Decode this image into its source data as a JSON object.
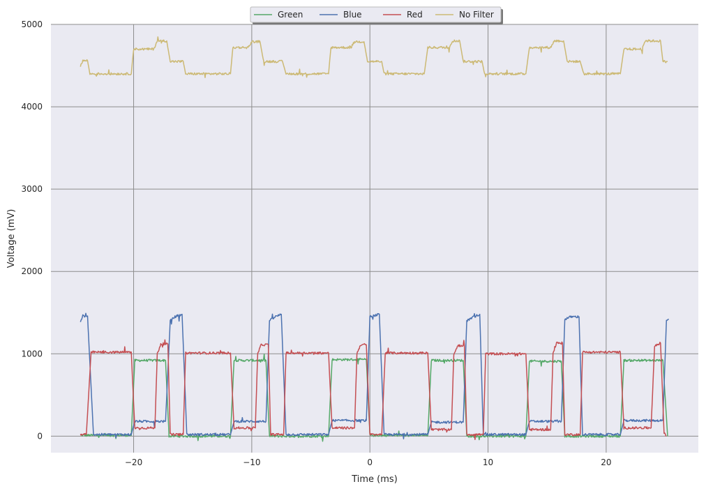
{
  "chart_data": {
    "type": "line",
    "title": "",
    "xlabel": "Time (ms)",
    "ylabel": "Voltage (mV)",
    "xlim": [
      -27,
      27.8
    ],
    "ylim": [
      -200,
      5000
    ],
    "xticks": [
      -20,
      -10,
      0,
      10,
      20
    ],
    "xtick_labels": [
      "−20",
      "−10",
      "0",
      "10",
      "20"
    ],
    "yticks": [
      0,
      1000,
      2000,
      3000,
      4000,
      5000
    ],
    "ytick_labels": [
      "0",
      "1000",
      "2000",
      "3000",
      "4000",
      "5000"
    ],
    "grid": true,
    "legend": {
      "placement": "top-center",
      "entries": [
        "Green",
        "Blue",
        "Red",
        "No Filter"
      ]
    },
    "series": [
      {
        "name": "Green",
        "color": "#55a868",
        "points": [
          [
            -24.5,
            10
          ],
          [
            -20.2,
            10
          ],
          [
            -19.9,
            920
          ],
          [
            -17.3,
            920
          ],
          [
            -17.0,
            0
          ],
          [
            -11.8,
            0
          ],
          [
            -11.5,
            920
          ],
          [
            -8.8,
            920
          ],
          [
            -8.5,
            0
          ],
          [
            -3.5,
            0
          ],
          [
            -3.2,
            930
          ],
          [
            -0.3,
            930
          ],
          [
            0.0,
            10
          ],
          [
            4.9,
            10
          ],
          [
            5.2,
            920
          ],
          [
            7.9,
            920
          ],
          [
            8.2,
            0
          ],
          [
            13.2,
            0
          ],
          [
            13.5,
            910
          ],
          [
            16.2,
            910
          ],
          [
            16.5,
            0
          ],
          [
            21.2,
            0
          ],
          [
            21.5,
            920
          ],
          [
            24.8,
            920
          ],
          [
            25.2,
            0
          ]
        ]
      },
      {
        "name": "Blue",
        "color": "#4c72b0",
        "points": [
          [
            -24.5,
            1400
          ],
          [
            -24.3,
            1460
          ],
          [
            -23.9,
            1460
          ],
          [
            -23.4,
            20
          ],
          [
            -20.2,
            20
          ],
          [
            -19.9,
            180
          ],
          [
            -17.3,
            180
          ],
          [
            -16.9,
            1400
          ],
          [
            -16.5,
            1450
          ],
          [
            -15.9,
            1480
          ],
          [
            -15.5,
            20
          ],
          [
            -11.8,
            20
          ],
          [
            -11.5,
            180
          ],
          [
            -8.8,
            180
          ],
          [
            -8.5,
            1400
          ],
          [
            -8.0,
            1450
          ],
          [
            -7.5,
            1480
          ],
          [
            -7.1,
            20
          ],
          [
            -3.5,
            20
          ],
          [
            -3.2,
            190
          ],
          [
            -0.3,
            190
          ],
          [
            0.0,
            1450
          ],
          [
            0.8,
            1480
          ],
          [
            1.2,
            20
          ],
          [
            4.9,
            20
          ],
          [
            5.2,
            170
          ],
          [
            7.9,
            170
          ],
          [
            8.2,
            1400
          ],
          [
            8.8,
            1450
          ],
          [
            9.3,
            1480
          ],
          [
            9.6,
            20
          ],
          [
            13.2,
            20
          ],
          [
            13.5,
            180
          ],
          [
            16.2,
            180
          ],
          [
            16.5,
            1420
          ],
          [
            17.0,
            1450
          ],
          [
            17.7,
            1450
          ],
          [
            18.0,
            20
          ],
          [
            21.2,
            20
          ],
          [
            21.5,
            190
          ],
          [
            24.8,
            190
          ],
          [
            25.1,
            1400
          ],
          [
            25.3,
            1420
          ]
        ]
      },
      {
        "name": "Red",
        "color": "#c44e52",
        "points": [
          [
            -24.5,
            20
          ],
          [
            -24.0,
            20
          ],
          [
            -23.6,
            1020
          ],
          [
            -20.2,
            1020
          ],
          [
            -19.9,
            100
          ],
          [
            -18.2,
            100
          ],
          [
            -18.0,
            1000
          ],
          [
            -17.7,
            1120
          ],
          [
            -17.1,
            1120
          ],
          [
            -16.9,
            20
          ],
          [
            -15.8,
            20
          ],
          [
            -15.6,
            1010
          ],
          [
            -11.8,
            1010
          ],
          [
            -11.5,
            100
          ],
          [
            -9.7,
            100
          ],
          [
            -9.5,
            1000
          ],
          [
            -9.2,
            1110
          ],
          [
            -8.6,
            1110
          ],
          [
            -8.4,
            20
          ],
          [
            -7.3,
            20
          ],
          [
            -7.1,
            1010
          ],
          [
            -3.5,
            1010
          ],
          [
            -3.2,
            100
          ],
          [
            -1.3,
            100
          ],
          [
            -1.1,
            1000
          ],
          [
            -0.8,
            1110
          ],
          [
            -0.3,
            1110
          ],
          [
            0.0,
            20
          ],
          [
            1.0,
            20
          ],
          [
            1.3,
            1010
          ],
          [
            4.9,
            1010
          ],
          [
            5.2,
            80
          ],
          [
            6.9,
            80
          ],
          [
            7.1,
            1000
          ],
          [
            7.5,
            1100
          ],
          [
            8.0,
            1100
          ],
          [
            8.2,
            20
          ],
          [
            9.6,
            20
          ],
          [
            9.8,
            1000
          ],
          [
            13.2,
            1000
          ],
          [
            13.5,
            80
          ],
          [
            15.3,
            80
          ],
          [
            15.5,
            1000
          ],
          [
            15.8,
            1130
          ],
          [
            16.3,
            1130
          ],
          [
            16.5,
            20
          ],
          [
            17.8,
            20
          ],
          [
            18.0,
            1020
          ],
          [
            21.2,
            1020
          ],
          [
            21.5,
            100
          ],
          [
            23.8,
            100
          ],
          [
            24.1,
            1100
          ],
          [
            24.6,
            1130
          ],
          [
            24.9,
            40
          ],
          [
            25.1,
            0
          ]
        ]
      },
      {
        "name": "No Filter",
        "color": "#ccb974",
        "points": [
          [
            -24.5,
            4500
          ],
          [
            -24.3,
            4560
          ],
          [
            -23.9,
            4560
          ],
          [
            -23.7,
            4400
          ],
          [
            -20.2,
            4400
          ],
          [
            -20.0,
            4700
          ],
          [
            -18.3,
            4700
          ],
          [
            -18.0,
            4800
          ],
          [
            -17.2,
            4800
          ],
          [
            -16.9,
            4550
          ],
          [
            -15.8,
            4550
          ],
          [
            -15.6,
            4400
          ],
          [
            -11.8,
            4400
          ],
          [
            -11.6,
            4720
          ],
          [
            -10.3,
            4720
          ],
          [
            -10.0,
            4790
          ],
          [
            -9.3,
            4790
          ],
          [
            -9.0,
            4550
          ],
          [
            -7.4,
            4550
          ],
          [
            -7.1,
            4400
          ],
          [
            -3.5,
            4400
          ],
          [
            -3.3,
            4720
          ],
          [
            -1.6,
            4720
          ],
          [
            -1.3,
            4790
          ],
          [
            -0.5,
            4790
          ],
          [
            -0.2,
            4550
          ],
          [
            1.0,
            4550
          ],
          [
            1.2,
            4400
          ],
          [
            4.6,
            4400
          ],
          [
            4.9,
            4720
          ],
          [
            6.7,
            4720
          ],
          [
            7.0,
            4800
          ],
          [
            7.6,
            4800
          ],
          [
            7.9,
            4550
          ],
          [
            9.5,
            4550
          ],
          [
            9.7,
            4400
          ],
          [
            13.2,
            4400
          ],
          [
            13.5,
            4720
          ],
          [
            15.3,
            4720
          ],
          [
            15.6,
            4800
          ],
          [
            16.4,
            4800
          ],
          [
            16.7,
            4550
          ],
          [
            17.8,
            4550
          ],
          [
            18.1,
            4400
          ],
          [
            21.2,
            4400
          ],
          [
            21.5,
            4700
          ],
          [
            23.0,
            4700
          ],
          [
            23.3,
            4800
          ],
          [
            24.6,
            4800
          ],
          [
            24.8,
            4550
          ],
          [
            25.2,
            4550
          ]
        ]
      }
    ]
  }
}
